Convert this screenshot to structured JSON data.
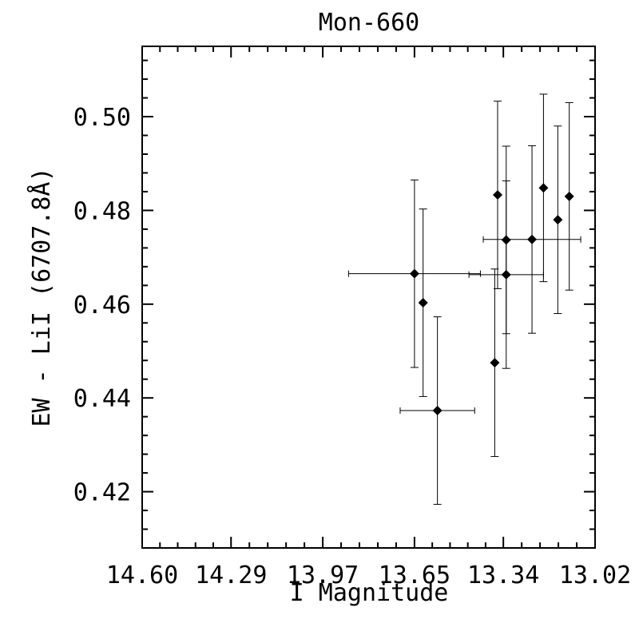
{
  "chart_data": {
    "type": "scatter",
    "title": "Mon-660",
    "xlabel": "I Magnitude",
    "ylabel": "EW - LiI (6707.8Å)",
    "x_reversed": true,
    "xlim": [
      14.6,
      13.02
    ],
    "ylim": [
      0.408,
      0.515
    ],
    "x_major_ticks": [
      14.6,
      14.29,
      13.97,
      13.65,
      13.34,
      13.02
    ],
    "x_tick_labels": [
      "14.60",
      "14.29",
      "13.97",
      "13.65",
      "13.34",
      "13.02"
    ],
    "y_major_ticks": [
      0.42,
      0.44,
      0.46,
      0.48,
      0.5
    ],
    "y_tick_labels": [
      "0.42",
      "0.44",
      "0.46",
      "0.48",
      "0.50"
    ],
    "grid": false,
    "legend": "none",
    "marker": "diamond",
    "points": [
      {
        "x": 13.65,
        "y": 0.4665,
        "yerr": 0.02,
        "xerr": 0.23
      },
      {
        "x": 13.62,
        "y": 0.4603,
        "yerr": 0.02
      },
      {
        "x": 13.57,
        "y": 0.4373,
        "yerr": 0.02,
        "xerr": 0.13
      },
      {
        "x": 13.37,
        "y": 0.4475,
        "yerr": 0.02
      },
      {
        "x": 13.36,
        "y": 0.4833,
        "yerr": 0.02
      },
      {
        "x": 13.33,
        "y": 0.4737,
        "yerr": 0.02
      },
      {
        "x": 13.33,
        "y": 0.4663,
        "yerr": 0.02,
        "xerr": 0.13
      },
      {
        "x": 13.24,
        "y": 0.4738,
        "yerr": 0.02,
        "xerr": 0.17
      },
      {
        "x": 13.2,
        "y": 0.4848,
        "yerr": 0.02
      },
      {
        "x": 13.15,
        "y": 0.478,
        "yerr": 0.02
      },
      {
        "x": 13.11,
        "y": 0.483,
        "yerr": 0.02
      }
    ]
  }
}
